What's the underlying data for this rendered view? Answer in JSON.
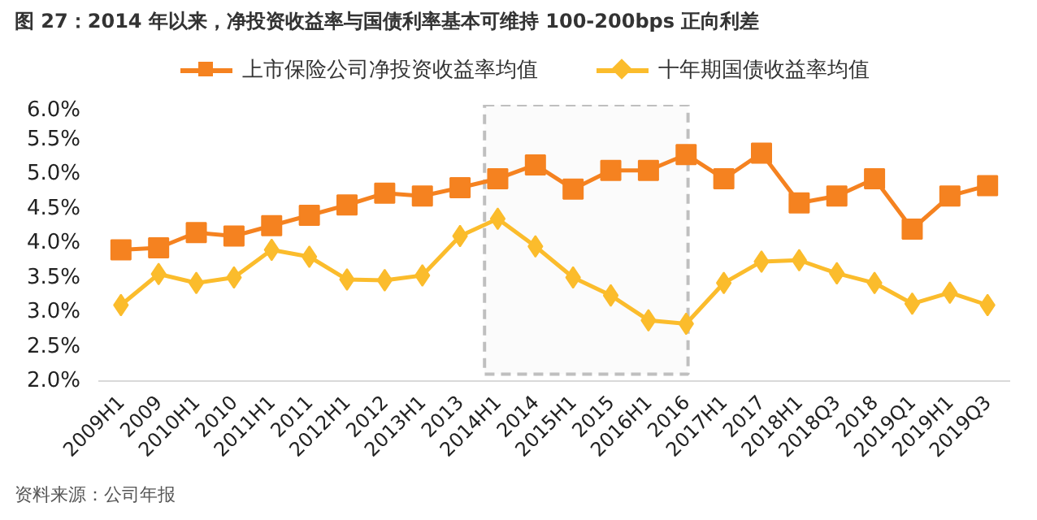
{
  "chart_data": {
    "type": "line",
    "title": "图 27：2014 年以来，净投资收益率与国债利率基本可维持 100-200bps 正向利差",
    "categories": [
      "2009H1",
      "2009",
      "2010H1",
      "2010",
      "2011H1",
      "2011",
      "2012H1",
      "2012",
      "2013H1",
      "2013",
      "2014H1",
      "2014",
      "2015H1",
      "2015",
      "2016H1",
      "2016",
      "2017H1",
      "2017",
      "2018H1",
      "2018Q3",
      "2018",
      "2019Q1",
      "2019H1",
      "2019Q3"
    ],
    "series": [
      {
        "name": "上市保险公司净投资收益率均值",
        "color": "#f58220",
        "marker": "square",
        "values": [
          3.9,
          3.93,
          4.15,
          4.1,
          4.25,
          4.4,
          4.55,
          4.72,
          4.68,
          4.8,
          4.93,
          5.13,
          4.78,
          5.05,
          5.05,
          5.28,
          4.93,
          5.3,
          4.58,
          4.68,
          4.93,
          4.2,
          4.68,
          4.83
        ]
      },
      {
        "name": "十年期国债收益率均值",
        "color": "#fbbc2c",
        "marker": "diamond",
        "values": [
          3.1,
          3.55,
          3.42,
          3.5,
          3.9,
          3.8,
          3.47,
          3.46,
          3.53,
          4.1,
          4.35,
          3.95,
          3.5,
          3.24,
          2.88,
          2.83,
          3.42,
          3.73,
          3.75,
          3.56,
          3.42,
          3.12,
          3.28,
          3.1
        ]
      }
    ],
    "ylim": [
      2.0,
      6.0
    ],
    "yticks": [
      {
        "value": 2.0,
        "label": "2.0%"
      },
      {
        "value": 2.5,
        "label": "2.5%"
      },
      {
        "value": 3.0,
        "label": "3.0%"
      },
      {
        "value": 3.5,
        "label": "3.5%"
      },
      {
        "value": 4.0,
        "label": "4.0%"
      },
      {
        "value": 4.5,
        "label": "4.5%"
      },
      {
        "value": 5.0,
        "label": "5.0%"
      },
      {
        "value": 5.5,
        "label": "5.5%"
      },
      {
        "value": 6.0,
        "label": "6.0%"
      }
    ],
    "bands": [
      {
        "axis": "x",
        "from": "2014H1",
        "to": "2016",
        "color": "#bfbfbf"
      }
    ],
    "grid": false,
    "legend": "top",
    "annotations": [
      "资料来源：公司年报"
    ]
  }
}
